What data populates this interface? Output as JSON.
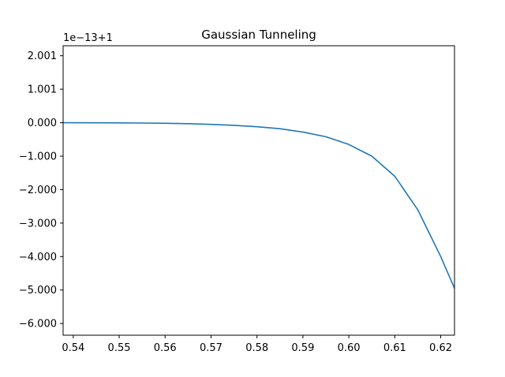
{
  "chart_data": {
    "type": "line",
    "title": "Gaussian Tunneling",
    "xlabel": "",
    "ylabel": "",
    "offset_text": "1e−13+1",
    "xlim": [
      0.5378,
      0.623
    ],
    "ylim": [
      -6.35,
      2.3
    ],
    "x_ticks": [
      0.54,
      0.55,
      0.56,
      0.57,
      0.58,
      0.59,
      0.6,
      0.61,
      0.62
    ],
    "x_tick_labels": [
      "0.54",
      "0.55",
      "0.56",
      "0.57",
      "0.58",
      "0.59",
      "0.60",
      "0.61",
      "0.62"
    ],
    "y_ticks": [
      2.001,
      1.001,
      0.0,
      -1.0,
      -2.0,
      -3.0,
      -4.0,
      -5.0,
      -6.0
    ],
    "y_tick_labels": [
      "2.001",
      "1.001",
      "0.000",
      "−1.000",
      "−2.000",
      "−3.000",
      "−4.000",
      "−5.000",
      "−6.000"
    ],
    "grid": false,
    "series": [
      {
        "color": "#1f77b4",
        "x": [
          0.5378,
          0.545,
          0.55,
          0.555,
          0.56,
          0.565,
          0.57,
          0.575,
          0.58,
          0.585,
          0.59,
          0.595,
          0.6,
          0.605,
          0.61,
          0.615,
          0.62,
          0.623
        ],
        "y": [
          0.0,
          -0.002,
          -0.005,
          -0.01,
          -0.018,
          -0.03,
          -0.05,
          -0.08,
          -0.12,
          -0.18,
          -0.28,
          -0.42,
          -0.65,
          -1.0,
          -1.6,
          -2.6,
          -4.0,
          -4.95
        ]
      }
    ]
  }
}
